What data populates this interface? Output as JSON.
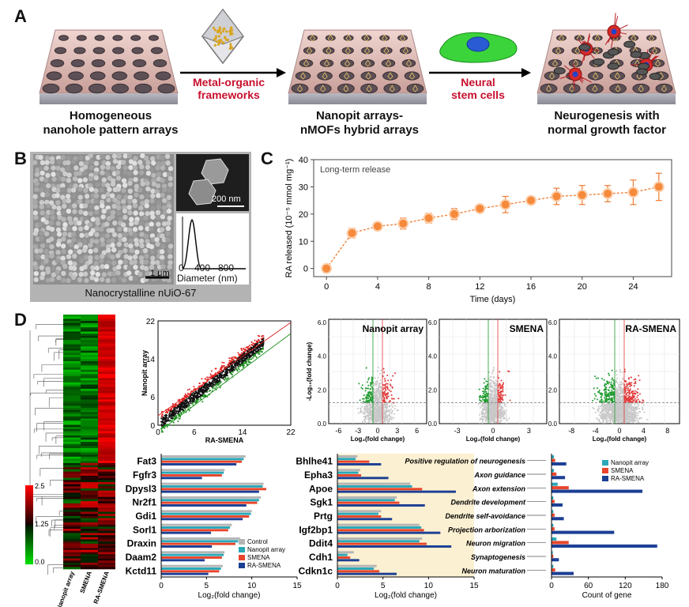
{
  "panels": {
    "a": "A",
    "b": "B",
    "c": "C",
    "d": "D"
  },
  "panel_a": {
    "step1": "Homogeneous\nnanohole pattern arrays",
    "step2": "Nanopit arrays-\nnMOFs hybrid arrays",
    "step3": "Neurogenesis with\nnormal growth factor",
    "arrow1": "Metal-organic\nframeworks",
    "arrow2": "Neural\nstem cells"
  },
  "panel_b": {
    "caption": "Nanocrystalline nUiO-67",
    "scale_main": "1 μm",
    "scale_inset": "200 nm",
    "hist_ticks": [
      "0",
      "400",
      "800"
    ],
    "hist_xlabel": "Diameter (nm)"
  },
  "chart_data": [
    {
      "type": "line",
      "title": "Long-term release",
      "xlabel": "Time (days)",
      "ylabel": "RA released (10⁻⁵ mmol mg⁻¹)",
      "xlim": [
        -1,
        27
      ],
      "ylim": [
        -3,
        40
      ],
      "xticks": [
        0,
        4,
        8,
        12,
        16,
        20,
        24
      ],
      "yticks": [
        0,
        10,
        20,
        30,
        40
      ],
      "x": [
        0,
        2,
        4,
        6,
        8,
        10,
        12,
        14,
        16,
        18,
        20,
        22,
        24,
        26
      ],
      "y": [
        0,
        13,
        15.5,
        16.5,
        18.5,
        20,
        22,
        23.5,
        25,
        26.5,
        27,
        27.5,
        28,
        30
      ],
      "err": [
        0.8,
        1.8,
        1.2,
        2,
        1.8,
        2,
        1.3,
        3,
        1.3,
        3,
        3.5,
        3,
        4.5,
        5
      ]
    },
    {
      "type": "bar",
      "xlabel": "Log₂(fold change)",
      "xticks": [
        0,
        5,
        10,
        15
      ],
      "categories": [
        "Fat3",
        "Fgfr3",
        "Dpysl3",
        "Nr2f1",
        "Gdi1",
        "Sorl1",
        "Draxin",
        "Daam2",
        "Kctd11"
      ],
      "series": [
        {
          "name": "Control",
          "color": "#b5b5b5",
          "values": [
            9.3,
            7.0,
            11.3,
            11.0,
            10.0,
            7.8,
            8.7,
            7.0,
            6.8
          ]
        },
        {
          "name": "Nanopit array",
          "color": "#2aa8b8",
          "values": [
            9.1,
            6.9,
            11.2,
            10.8,
            9.9,
            7.6,
            8.5,
            6.9,
            6.6
          ]
        },
        {
          "name": "SMENA",
          "color": "#e8452c",
          "values": [
            8.9,
            6.7,
            11.6,
            10.6,
            9.7,
            7.4,
            8.2,
            6.7,
            6.4
          ]
        },
        {
          "name": "RA-SMENA",
          "color": "#1c3f94",
          "values": [
            8.3,
            4.5,
            10.8,
            9.4,
            9.0,
            5.5,
            5.6,
            4.8,
            5.2
          ]
        }
      ]
    },
    {
      "type": "bar",
      "xlabel": "Log₂(fold change)",
      "xticks": [
        0,
        5,
        10,
        15
      ],
      "categories": [
        "Bhlhe41",
        "Epha3",
        "Apoe",
        "Sgk1",
        "Prtg",
        "Igf2bp1",
        "Ddit4",
        "Cdh1",
        "Cdkn1c"
      ],
      "series": [
        {
          "name": "Control",
          "color": "#b5b5b5",
          "values": [
            2.2,
            2.5,
            8.0,
            6.5,
            4.8,
            9.0,
            9.3,
            1.8,
            4.3
          ]
        },
        {
          "name": "Nanopit array",
          "color": "#2aa8b8",
          "values": [
            2.0,
            2.3,
            8.2,
            6.3,
            4.5,
            9.2,
            9.0,
            1.1,
            4.0
          ]
        },
        {
          "name": "SMENA",
          "color": "#e8452c",
          "values": [
            3.5,
            2.6,
            9.3,
            6.8,
            4.8,
            9.5,
            9.8,
            1.4,
            4.6
          ]
        },
        {
          "name": "RA-SMENA",
          "color": "#1c3f94",
          "values": [
            4.8,
            5.6,
            13.0,
            9.6,
            6.0,
            11.3,
            12.5,
            2.4,
            6.5
          ]
        }
      ]
    },
    {
      "type": "bar",
      "xlabel": "Count of gene",
      "xticks": [
        0,
        60,
        120,
        180
      ],
      "categories": [
        "Positive regulation of neurogenesis",
        "Axon guidance",
        "Axon extension",
        "Dendrite development",
        "Dendrite self-avoidance",
        "Projection arborization",
        "Neuron migration",
        "Synaptogenesis",
        "Neuron maturation"
      ],
      "series": [
        {
          "name": "Nanopit array",
          "color": "#2aa8b8",
          "values": [
            4,
            4,
            10,
            3,
            3,
            3,
            8,
            2,
            3
          ]
        },
        {
          "name": "SMENA",
          "color": "#e8452c",
          "values": [
            6,
            8,
            28,
            5,
            5,
            5,
            28,
            3,
            6
          ]
        },
        {
          "name": "RA-SMENA",
          "color": "#1c3f94",
          "values": [
            24,
            22,
            148,
            18,
            20,
            102,
            172,
            12,
            36
          ]
        }
      ]
    }
  ],
  "scatter": {
    "ylabel": "Nanopit array",
    "xlabel": "RA-SMENA",
    "ticks": [
      "0",
      "6",
      "14",
      "22"
    ]
  },
  "volcano": {
    "titles": [
      "Nanopit array",
      "SMENA",
      "RA-SMENA"
    ],
    "ylabel": "-Log₁₀(fold change)",
    "xlabel": "Log₂(fold change)",
    "xticks_1": [
      "-6",
      "-3",
      "0",
      "3",
      "6"
    ],
    "xticks_2": [
      "-3",
      "0",
      "3"
    ],
    "xticks_3": [
      "-8",
      "-4",
      "0",
      "4",
      "8"
    ],
    "yticks": [
      "6.0",
      "4.0",
      "2.0",
      "0.0"
    ]
  },
  "heatmap": {
    "legend_ticks": [
      "2.5",
      "1.25",
      "0.0"
    ],
    "columns": [
      "Nanopit array",
      "SMENA",
      "RA-SMENA"
    ]
  }
}
